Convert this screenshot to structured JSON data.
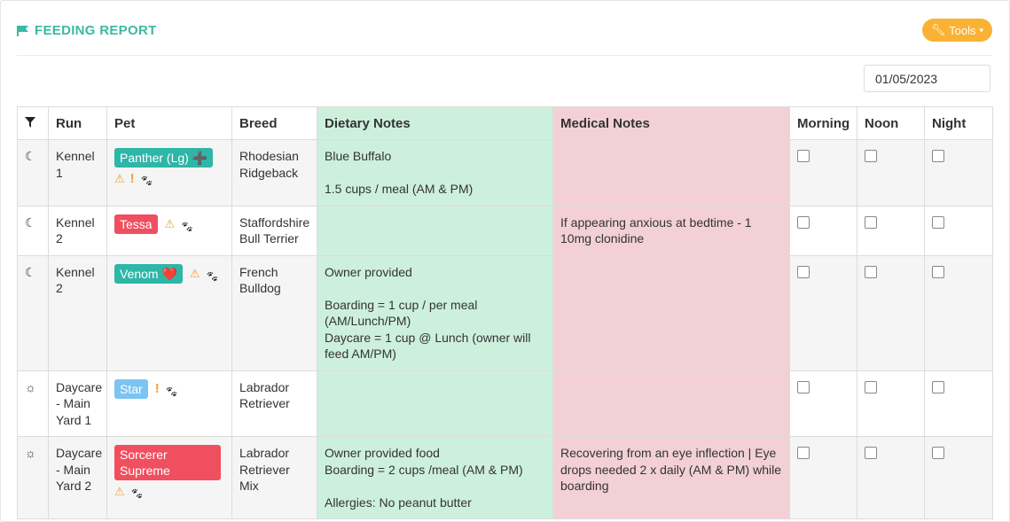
{
  "header": {
    "title": "FEEDING REPORT",
    "tools_label": "Tools"
  },
  "date_value": "01/05/2023",
  "table": {
    "columns": [
      "Run",
      "Pet",
      "Breed",
      "Dietary Notes",
      "Medical Notes",
      "Morning",
      "Noon",
      "Night"
    ],
    "rows": [
      {
        "state_icon": "moon-icon",
        "run": "Kennel 1",
        "pet": "Panther (Lg)",
        "pet_color": "#2eb6a7",
        "pet_suffix": "➕",
        "icons": [
          "warning-icon",
          "exclamation-icon",
          "paw-icon"
        ],
        "breed": "Rhodesian Ridgeback",
        "dietary": [
          "Blue Buffalo",
          "",
          "1.5 cups / meal (AM & PM)"
        ],
        "medical": ""
      },
      {
        "state_icon": "moon-icon",
        "run": "Kennel 2",
        "pet": "Tessa",
        "pet_color": "#ef4f5f",
        "pet_suffix": "",
        "icons": [
          "warning-icon",
          "paw-icon"
        ],
        "breed": "Staffordshire Bull Terrier",
        "dietary": [],
        "medical": "If appearing anxious at bedtime - 1 10mg clonidine"
      },
      {
        "state_icon": "moon-icon",
        "run": "Kennel 2",
        "pet": "Venom",
        "pet_color": "#2eb6a7",
        "pet_suffix": "❤️",
        "icons": [
          "warning-icon",
          "paw-icon"
        ],
        "breed": "French Bulldog",
        "dietary": [
          "Owner provided",
          "",
          "Boarding = 1 cup / per meal (AM/Lunch/PM)",
          "Daycare = 1 cup @ Lunch (owner will feed AM/PM)"
        ],
        "medical": ""
      },
      {
        "state_icon": "sun-icon",
        "run": "Daycare - Main Yard 1",
        "pet": "Star",
        "pet_color": "#7cc4f2",
        "pet_suffix": "",
        "icons": [
          "exclamation-icon",
          "paw-icon"
        ],
        "breed": "Labrador Retriever",
        "dietary": [],
        "medical": ""
      },
      {
        "state_icon": "sun-icon",
        "run": "Daycare - Main Yard 2",
        "pet": "Sorcerer Supreme",
        "pet_color": "#ef4f5f",
        "pet_suffix": "",
        "icons": [
          "warning-icon",
          "paw-icon"
        ],
        "breed": "Labrador Retriever Mix",
        "dietary": [
          "Owner provided food",
          "Boarding = 2 cups /meal (AM & PM)",
          "",
          "Allergies: No peanut butter"
        ],
        "medical": "Recovering from an eye inflection | Eye drops needed 2 x daily (AM & PM) while boarding"
      }
    ]
  },
  "colors": {
    "accent": "#3db8a4",
    "tools_button": "#f9b233",
    "dietary_bg": "#cdf0dd",
    "medical_bg": "#f2d0d6",
    "warning": "#f0a030"
  }
}
